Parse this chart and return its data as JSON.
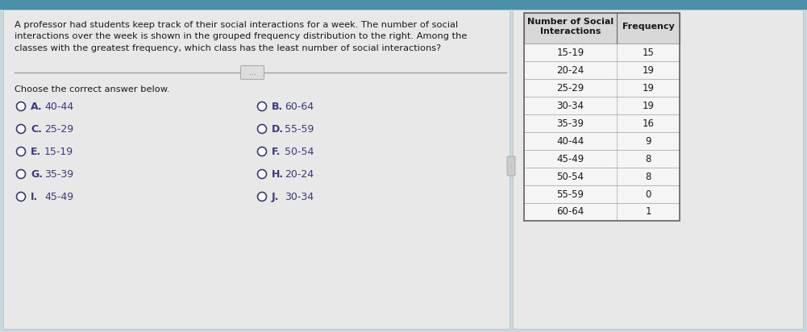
{
  "title_text": "A professor had students keep track of their social interactions for a week. The number of social\ninteractions over the week is shown in the grouped frequency distribution to the right. Among the\nclasses with the greatest frequency, which class has the least number of social interactions?",
  "divider_button_text": "...",
  "choose_text": "Choose the correct answer below.",
  "answers_left": [
    {
      "label": "A.",
      "value": "40-44"
    },
    {
      "label": "C.",
      "value": "25-29"
    },
    {
      "label": "E.",
      "value": "15-19"
    },
    {
      "label": "G.",
      "value": "35-39"
    },
    {
      "label": "I.",
      "value": "45-49"
    }
  ],
  "answers_right": [
    {
      "label": "B.",
      "value": "60-64"
    },
    {
      "label": "D.",
      "value": "55-59"
    },
    {
      "label": "F.",
      "value": "50-54"
    },
    {
      "label": "H.",
      "value": "20-24"
    },
    {
      "label": "J.",
      "value": "30-34"
    }
  ],
  "table_col1_header": "Number of Social\nInteractions",
  "table_col2_header": "Frequency",
  "table_rows": [
    [
      "15-19",
      "15"
    ],
    [
      "20-24",
      "19"
    ],
    [
      "25-29",
      "19"
    ],
    [
      "30-34",
      "19"
    ],
    [
      "35-39",
      "16"
    ],
    [
      "40-44",
      "9"
    ],
    [
      "45-49",
      "8"
    ],
    [
      "50-54",
      "8"
    ],
    [
      "55-59",
      "0"
    ],
    [
      "60-64",
      "1"
    ]
  ],
  "bg_color": "#c8d8e0",
  "left_bg_color": "#e8e8e8",
  "right_bg_color": "#e8e8e8",
  "table_bg_color": "#e8e8e8",
  "table_header_bg": "#d8d8d8",
  "table_row_bg": "#f5f5f5",
  "text_color": "#1a1a1a",
  "answer_color": "#3a3a7a",
  "radio_color": "#3a3a7a",
  "top_bar_color": "#4a8fa8",
  "divider_color": "#999999",
  "table_border_color": "#666666",
  "table_line_color": "#aaaaaa"
}
